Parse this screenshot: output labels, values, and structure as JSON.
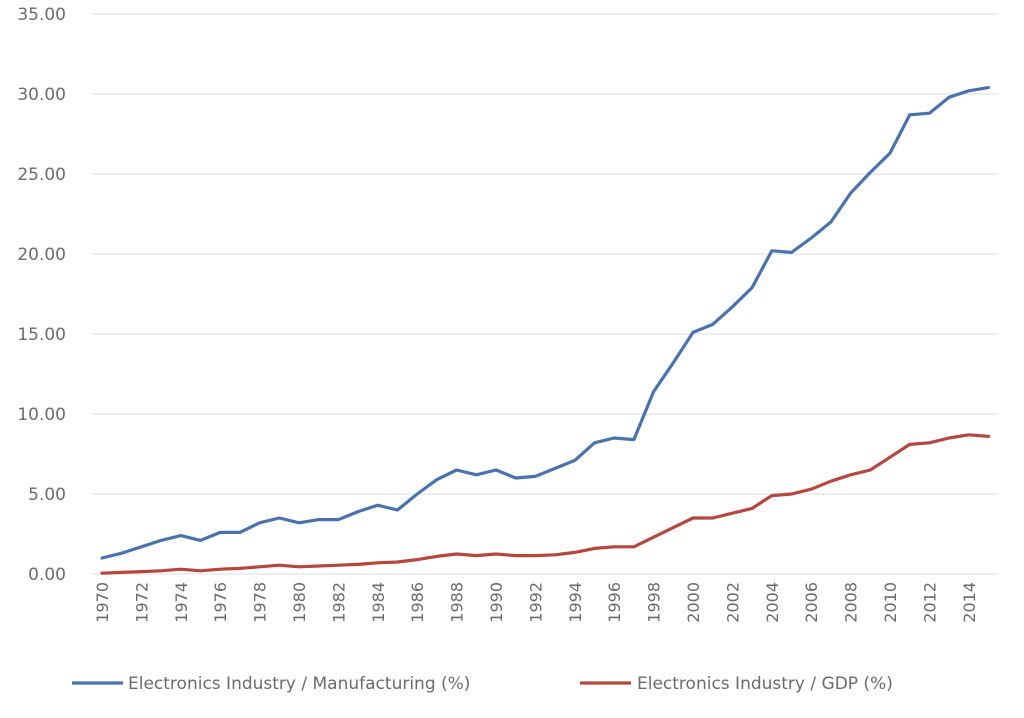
{
  "chart_data": {
    "type": "line",
    "title": "",
    "xlabel": "",
    "ylabel": "",
    "ylim": [
      0,
      35
    ],
    "yticks": [
      "0.00",
      "5.00",
      "10.00",
      "15.00",
      "20.00",
      "25.00",
      "30.00",
      "35.00"
    ],
    "ytick_values": [
      0,
      5,
      10,
      15,
      20,
      25,
      30,
      35
    ],
    "x": [
      1970,
      1971,
      1972,
      1973,
      1974,
      1975,
      1976,
      1977,
      1978,
      1979,
      1980,
      1981,
      1982,
      1983,
      1984,
      1985,
      1986,
      1987,
      1988,
      1989,
      1990,
      1991,
      1992,
      1993,
      1994,
      1995,
      1996,
      1997,
      1998,
      1999,
      2000,
      2001,
      2002,
      2003,
      2004,
      2005,
      2006,
      2007,
      2008,
      2009,
      2010,
      2011,
      2012,
      2013,
      2014,
      2015
    ],
    "xtick_labels": [
      "1970",
      "1972",
      "1974",
      "1976",
      "1978",
      "1980",
      "1982",
      "1984",
      "1986",
      "1988",
      "1990",
      "1992",
      "1994",
      "1996",
      "1998",
      "2000",
      "2002",
      "2004",
      "2006",
      "2008",
      "2010",
      "2012",
      "2014"
    ],
    "grid": true,
    "legend_position": "bottom",
    "series": [
      {
        "name": "Electronics Industry / Manufacturing (%)",
        "color": "#4a72ae",
        "values": [
          1.0,
          1.3,
          1.7,
          2.1,
          2.4,
          2.1,
          2.6,
          2.6,
          3.2,
          3.5,
          3.2,
          3.4,
          3.4,
          3.9,
          4.3,
          4.0,
          5.0,
          5.9,
          6.5,
          6.2,
          6.5,
          6.0,
          6.1,
          6.6,
          7.1,
          8.2,
          8.5,
          8.4,
          11.4,
          13.2,
          15.1,
          15.6,
          16.7,
          17.9,
          20.2,
          20.1,
          21.0,
          22.0,
          23.8,
          25.1,
          26.3,
          28.7,
          28.8,
          29.8,
          30.2,
          30.4
        ]
      },
      {
        "name": "Electronics Industry / GDP (%)",
        "color": "#b5473f",
        "values": [
          0.05,
          0.1,
          0.15,
          0.2,
          0.3,
          0.2,
          0.3,
          0.35,
          0.45,
          0.55,
          0.45,
          0.5,
          0.55,
          0.6,
          0.7,
          0.75,
          0.9,
          1.1,
          1.25,
          1.15,
          1.25,
          1.15,
          1.15,
          1.2,
          1.35,
          1.6,
          1.7,
          1.7,
          2.3,
          2.9,
          3.5,
          3.5,
          3.8,
          4.1,
          4.9,
          5.0,
          5.3,
          5.8,
          6.2,
          6.5,
          7.3,
          8.1,
          8.2,
          8.5,
          8.7,
          8.6
        ]
      }
    ]
  }
}
